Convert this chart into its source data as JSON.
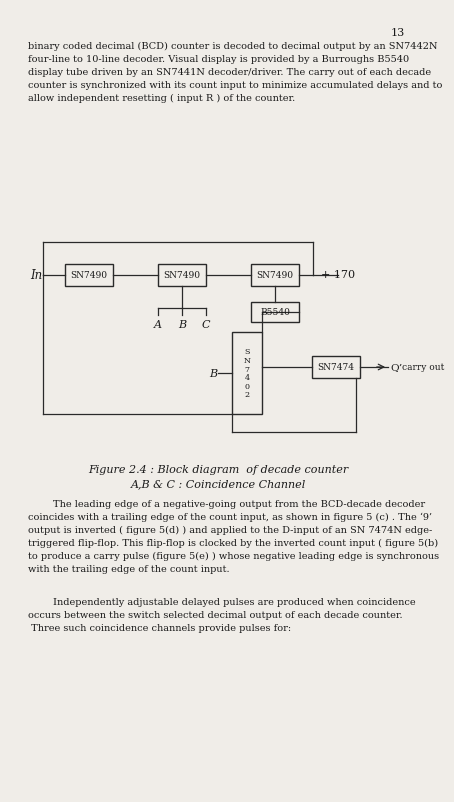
{
  "page_number": "13",
  "bg_color": "#f0ede8",
  "text_color": "#1a1a1a",
  "box_color": "#2a2a2a",
  "lines_top": [
    "binary coded decimal (BCD) counter is decoded to decimal output by an SN7442N",
    "four-line to 10-line decoder. Visual display is provided by a Burroughs B5540",
    "display tube driven by an SN7441N decoder/driver. The carry out of each decade",
    "counter is synchronized with its count input to minimize accumulated delays and to",
    "allow independent resetting ( input R ) of the counter."
  ],
  "fig_caption_1": "Figure 2.4 : Block diagram  of decade counter",
  "fig_caption_2": "A,B & C : Coincidence Channel",
  "para1_lines": [
    "        The leading edge of a negative-going output from the BCD-decade decoder",
    "coincides with a trailing edge of the count input, as shown in figure 5 (c) . The ‘9’",
    "output is inverted ( figure 5(d) ) and applied to the D-input of an SN 7474N edge-",
    "triggered flip-flop. This flip-flop is clocked by the inverted count input ( figure 5(b)",
    "to produce a carry pulse (figure 5(e) ) whose negative leading edge is synchronous",
    "with the trailing edge of the count input."
  ],
  "para2_lines": [
    "        Independently adjustable delayed pulses are produced when coincidence",
    "occurs between the switch selected decimal output of each decade counter.",
    " Three such coincidence channels provide pulses for:"
  ],
  "diagram": {
    "in_label": "In",
    "box1_label": "SN7490",
    "box2_label": "SN7490",
    "box3_label": "SN7490",
    "box4_label": "B5540",
    "box5_label": "S\nN\n7\n4\n0\n2",
    "box6_label": "SN7474",
    "plus170": "+ 170",
    "A_label": "A",
    "B_label": "B",
    "C_label": "C",
    "B2_label": "B",
    "Q_label": "Q’",
    "carry_label": "carry out"
  }
}
